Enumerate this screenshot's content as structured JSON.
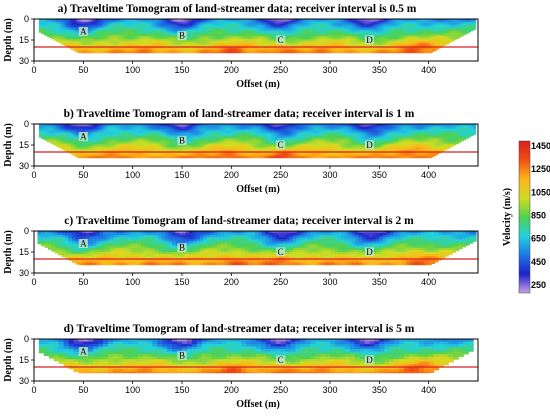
{
  "chart_data": [
    {
      "type": "heatmap",
      "title": "a) Traveltime Tomogram of land-streamer data; receiver interval is 0.5 m",
      "xlabel": "Offset (m)",
      "ylabel": "Depth (m)",
      "xlim": [
        0,
        450
      ],
      "ylim": [
        30,
        0
      ],
      "xticks": [
        "0",
        "50",
        "100",
        "150",
        "200",
        "250",
        "300",
        "350",
        "400"
      ],
      "yticks": [
        "0",
        "15",
        "30"
      ],
      "reference_line_depth": 20,
      "markers": [
        {
          "label": "A",
          "x": 50,
          "depth": 10
        },
        {
          "label": "B",
          "x": 150,
          "depth": 13
        },
        {
          "label": "C",
          "x": 250,
          "depth": 16
        },
        {
          "label": "D",
          "x": 340,
          "depth": 16
        }
      ]
    },
    {
      "type": "heatmap",
      "title": "b) Traveltime Tomogram of land-streamer data; receiver interval is 1 m",
      "xlabel": "Offset (m)",
      "ylabel": "Depth (m)",
      "xlim": [
        0,
        450
      ],
      "ylim": [
        30,
        0
      ],
      "xticks": [
        "0",
        "50",
        "100",
        "150",
        "200",
        "250",
        "300",
        "350",
        "400"
      ],
      "yticks": [
        "0",
        "15",
        "30"
      ],
      "reference_line_depth": 20,
      "markers": [
        {
          "label": "A",
          "x": 50,
          "depth": 10
        },
        {
          "label": "B",
          "x": 150,
          "depth": 13
        },
        {
          "label": "C",
          "x": 250,
          "depth": 16
        },
        {
          "label": "D",
          "x": 340,
          "depth": 16
        }
      ]
    },
    {
      "type": "heatmap",
      "title": "c) Traveltime Tomogram of land-streamer data; receiver interval is 2 m",
      "xlabel": "",
      "ylabel": "Depth (m)",
      "xlim": [
        0,
        450
      ],
      "ylim": [
        30,
        0
      ],
      "xticks": [
        "0",
        "50",
        "100",
        "150",
        "200",
        "250",
        "300",
        "350",
        "400"
      ],
      "yticks": [
        "0",
        "15",
        "30"
      ],
      "reference_line_depth": 20,
      "markers": [
        {
          "label": "A",
          "x": 50,
          "depth": 10
        },
        {
          "label": "B",
          "x": 150,
          "depth": 13
        },
        {
          "label": "C",
          "x": 250,
          "depth": 16
        },
        {
          "label": "D",
          "x": 340,
          "depth": 16
        }
      ]
    },
    {
      "type": "heatmap",
      "title": "d) Traveltime Tomogram of land-streamer data; receiver interval is 5 m",
      "xlabel": "Offset (m)",
      "ylabel": "Depth (m)",
      "xlim": [
        0,
        450
      ],
      "ylim": [
        30,
        0
      ],
      "xticks": [
        "0",
        "50",
        "100",
        "150",
        "200",
        "250",
        "300",
        "350",
        "400"
      ],
      "yticks": [
        "0",
        "15",
        "30"
      ],
      "reference_line_depth": 20,
      "markers": [
        {
          "label": "A",
          "x": 50,
          "depth": 10
        },
        {
          "label": "B",
          "x": 150,
          "depth": 13
        },
        {
          "label": "C",
          "x": 250,
          "depth": 16
        },
        {
          "label": "D",
          "x": 340,
          "depth": 16
        }
      ]
    }
  ],
  "colorbar": {
    "label": "Velocity (m/s)",
    "ticks": [
      "1450",
      "1250",
      "1050",
      "850",
      "650",
      "450",
      "250"
    ],
    "range": [
      250,
      1550
    ],
    "stops": [
      "#c9a0e6",
      "#1e22c8",
      "#1e78e6",
      "#23d2dc",
      "#4fd250",
      "#d2dc23",
      "#ffb418",
      "#f05014",
      "#dc1e1e"
    ]
  },
  "colors": {
    "reference_line": "#d82020",
    "marker_box": "#bfe9c8"
  }
}
